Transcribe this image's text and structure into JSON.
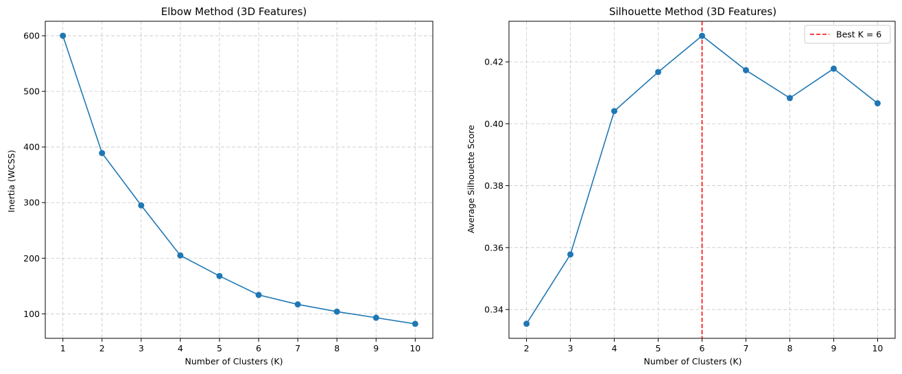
{
  "chart_data": [
    {
      "type": "line",
      "title": "Elbow Method (3D Features)",
      "xlabel": "Number of Clusters (K)",
      "ylabel": "Inertia (WCSS)",
      "x": [
        1,
        2,
        3,
        4,
        5,
        6,
        7,
        8,
        9,
        10
      ],
      "series": [
        {
          "values": [
            600,
            389,
            295,
            205,
            168,
            134,
            117,
            104,
            93,
            82
          ]
        }
      ],
      "xticks": [
        1,
        2,
        3,
        4,
        5,
        6,
        7,
        8,
        9,
        10
      ],
      "yticks": [
        100,
        200,
        300,
        400,
        500,
        600
      ],
      "xlim": [
        0.55,
        10.45
      ],
      "ylim": [
        56,
        626
      ],
      "grid": true,
      "line_color": "#1f77b4",
      "marker": "circle"
    },
    {
      "type": "line",
      "title": "Silhouette Method (3D Features)",
      "xlabel": "Number of Clusters (K)",
      "ylabel": "Average Silhouette Score",
      "x": [
        2,
        3,
        4,
        5,
        6,
        7,
        8,
        9,
        10
      ],
      "series": [
        {
          "values": [
            0.3354,
            0.3578,
            0.4041,
            0.4167,
            0.4284,
            0.4173,
            0.4083,
            0.4178,
            0.4066
          ]
        }
      ],
      "xticks": [
        2,
        3,
        4,
        5,
        6,
        7,
        8,
        9,
        10
      ],
      "yticks": [
        0.34,
        0.36,
        0.38,
        0.4,
        0.42
      ],
      "ytick_labels": [
        "0.34",
        "0.36",
        "0.38",
        "0.40",
        "0.42"
      ],
      "xlim": [
        1.6,
        10.4
      ],
      "ylim": [
        0.3307,
        0.4331
      ],
      "grid": true,
      "line_color": "#1f77b4",
      "marker": "circle",
      "reference_line": {
        "x": 6,
        "label": "Best K = 6",
        "color": "#ff0000",
        "style": "dashed"
      },
      "legend": {
        "position": "top-right",
        "entries": [
          "Best K = 6"
        ]
      }
    }
  ]
}
